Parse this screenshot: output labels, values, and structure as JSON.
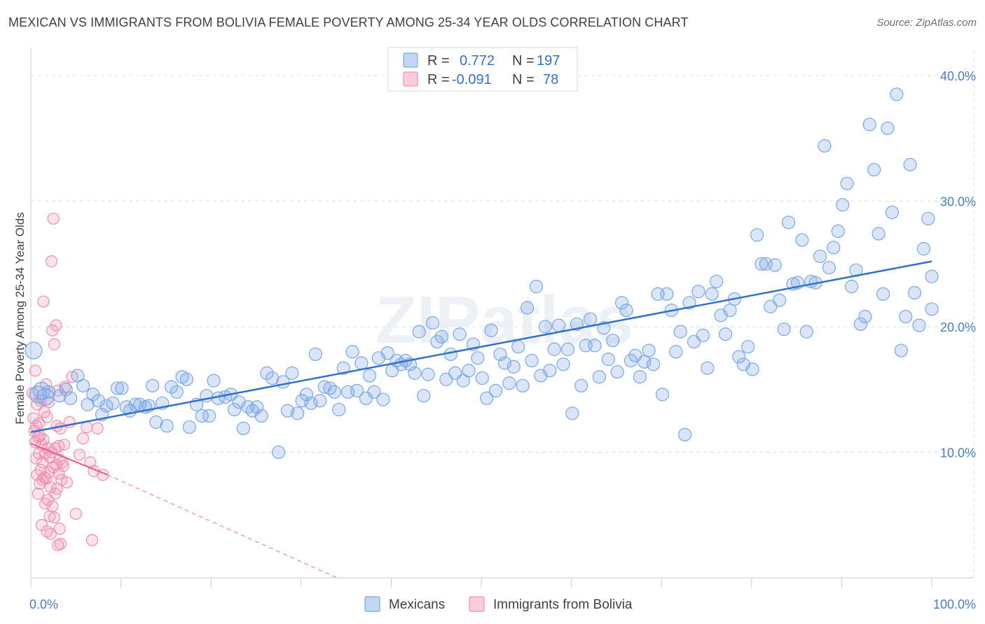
{
  "title": "MEXICAN VS IMMIGRANTS FROM BOLIVIA FEMALE POVERTY AMONG 25-34 YEAR OLDS CORRELATION CHART",
  "source": "Source: ZipAtlas.com",
  "watermark": "ZIPatlas",
  "colors": {
    "mexicans": "#7aa7e6",
    "mexicans_fill": "rgba(122,167,230,0.28)",
    "mexicans_line": "#3370cc",
    "bolivia": "#f08fb0",
    "bolivia_fill": "rgba(240,143,176,0.25)",
    "bolivia_line": "#e5628f",
    "tick_text": "#4a7cc7",
    "grid": "#d9dde3"
  },
  "legend": {
    "r_label": "R =",
    "n_label": "N =",
    "rows": [
      {
        "r": "0.772",
        "n": "197"
      },
      {
        "r": "-0.091",
        "n": "78"
      }
    ]
  },
  "chart_data": {
    "type": "scatter",
    "title": "MEXICAN VS IMMIGRANTS FROM BOLIVIA FEMALE POVERTY AMONG 25-34 YEAR OLDS CORRELATION CHART",
    "xlabel": "",
    "ylabel": "Female Poverty Among 25-34 Year Olds",
    "xlim": [
      0,
      100
    ],
    "ylim": [
      0,
      42
    ],
    "x_tick_labels": [
      "0.0%",
      "100.0%"
    ],
    "y_ticks": [
      10,
      20,
      30,
      40
    ],
    "y_tick_labels": [
      "10.0%",
      "20.0%",
      "30.0%",
      "40.0%"
    ],
    "grid": true,
    "legend_position": "top-center",
    "series": [
      {
        "name": "Mexicans",
        "r": 0.772,
        "n": 197,
        "trend": {
          "x": [
            0,
            100
          ],
          "y": [
            11.6,
            25.2
          ]
        },
        "points": [
          [
            0.3,
            18.1
          ],
          [
            0.8,
            14.6
          ],
          [
            1.2,
            14.9
          ],
          [
            1.6,
            14.4
          ],
          [
            2.0,
            14.8
          ],
          [
            3.2,
            14.5
          ],
          [
            3.9,
            15.0
          ],
          [
            4.4,
            14.3
          ],
          [
            5.2,
            16.1
          ],
          [
            5.8,
            15.3
          ],
          [
            6.3,
            13.8
          ],
          [
            6.9,
            14.6
          ],
          [
            7.5,
            14.1
          ],
          [
            7.9,
            13.0
          ],
          [
            8.4,
            13.7
          ],
          [
            9.1,
            13.9
          ],
          [
            9.6,
            15.1
          ],
          [
            10.1,
            15.1
          ],
          [
            10.6,
            13.6
          ],
          [
            11.0,
            13.3
          ],
          [
            11.6,
            13.8
          ],
          [
            12.1,
            13.8
          ],
          [
            12.7,
            13.6
          ],
          [
            13.1,
            13.7
          ],
          [
            13.5,
            15.3
          ],
          [
            13.9,
            12.4
          ],
          [
            14.6,
            13.9
          ],
          [
            15.1,
            12.1
          ],
          [
            15.6,
            15.2
          ],
          [
            16.2,
            14.8
          ],
          [
            16.8,
            16.0
          ],
          [
            17.3,
            15.8
          ],
          [
            17.6,
            12.0
          ],
          [
            18.4,
            13.8
          ],
          [
            19.0,
            12.9
          ],
          [
            19.5,
            14.5
          ],
          [
            19.8,
            12.9
          ],
          [
            20.3,
            15.7
          ],
          [
            20.8,
            14.3
          ],
          [
            21.6,
            14.4
          ],
          [
            22.2,
            14.6
          ],
          [
            22.6,
            13.4
          ],
          [
            23.1,
            14.0
          ],
          [
            23.6,
            11.9
          ],
          [
            24.1,
            13.6
          ],
          [
            24.6,
            13.3
          ],
          [
            25.1,
            13.6
          ],
          [
            25.6,
            12.9
          ],
          [
            26.2,
            16.3
          ],
          [
            26.8,
            15.9
          ],
          [
            27.5,
            10.0
          ],
          [
            28.0,
            15.6
          ],
          [
            28.5,
            13.3
          ],
          [
            29.0,
            16.3
          ],
          [
            29.6,
            13.1
          ],
          [
            30.1,
            14.1
          ],
          [
            30.6,
            14.6
          ],
          [
            31.1,
            13.9
          ],
          [
            31.6,
            17.8
          ],
          [
            32.1,
            14.1
          ],
          [
            32.6,
            15.2
          ],
          [
            33.2,
            15.1
          ],
          [
            33.7,
            14.8
          ],
          [
            34.2,
            13.4
          ],
          [
            34.7,
            16.7
          ],
          [
            35.2,
            14.8
          ],
          [
            35.7,
            18.0
          ],
          [
            36.2,
            14.9
          ],
          [
            36.7,
            17.1
          ],
          [
            37.2,
            14.3
          ],
          [
            37.6,
            16.1
          ],
          [
            38.1,
            14.8
          ],
          [
            38.6,
            17.5
          ],
          [
            39.1,
            14.2
          ],
          [
            39.6,
            17.9
          ],
          [
            40.1,
            16.5
          ],
          [
            40.6,
            17.3
          ],
          [
            41.1,
            17.0
          ],
          [
            41.6,
            17.3
          ],
          [
            42.1,
            17.0
          ],
          [
            42.6,
            16.3
          ],
          [
            43.1,
            19.6
          ],
          [
            43.6,
            14.5
          ],
          [
            44.1,
            16.2
          ],
          [
            44.6,
            20.3
          ],
          [
            45.1,
            18.8
          ],
          [
            45.6,
            19.2
          ],
          [
            46.1,
            15.8
          ],
          [
            46.6,
            17.8
          ],
          [
            47.1,
            16.3
          ],
          [
            47.6,
            19.4
          ],
          [
            48.0,
            15.7
          ],
          [
            48.6,
            16.5
          ],
          [
            49.1,
            18.6
          ],
          [
            49.6,
            17.5
          ],
          [
            50.1,
            15.9
          ],
          [
            50.6,
            14.3
          ],
          [
            51.1,
            19.7
          ],
          [
            51.6,
            14.9
          ],
          [
            52.1,
            17.8
          ],
          [
            52.6,
            17.1
          ],
          [
            53.1,
            15.5
          ],
          [
            53.6,
            16.8
          ],
          [
            54.1,
            18.4
          ],
          [
            54.6,
            15.3
          ],
          [
            55.1,
            21.5
          ],
          [
            55.6,
            17.3
          ],
          [
            56.1,
            23.2
          ],
          [
            56.6,
            16.1
          ],
          [
            57.1,
            20.0
          ],
          [
            57.6,
            16.5
          ],
          [
            58.1,
            18.2
          ],
          [
            58.6,
            20.1
          ],
          [
            59.1,
            17.0
          ],
          [
            59.6,
            18.2
          ],
          [
            60.1,
            13.1
          ],
          [
            60.6,
            20.2
          ],
          [
            61.1,
            15.3
          ],
          [
            61.6,
            18.5
          ],
          [
            62.1,
            20.6
          ],
          [
            62.6,
            18.5
          ],
          [
            63.1,
            16.0
          ],
          [
            63.6,
            19.9
          ],
          [
            64.1,
            17.4
          ],
          [
            64.6,
            18.9
          ],
          [
            65.1,
            16.4
          ],
          [
            65.6,
            21.9
          ],
          [
            66.1,
            21.3
          ],
          [
            66.6,
            17.3
          ],
          [
            67.1,
            17.7
          ],
          [
            67.6,
            16.0
          ],
          [
            68.1,
            17.2
          ],
          [
            68.6,
            18.1
          ],
          [
            69.1,
            17.0
          ],
          [
            69.6,
            22.6
          ],
          [
            70.1,
            14.6
          ],
          [
            70.6,
            22.6
          ],
          [
            71.1,
            21.3
          ],
          [
            71.6,
            18.0
          ],
          [
            72.1,
            19.6
          ],
          [
            72.6,
            11.4
          ],
          [
            73.1,
            21.9
          ],
          [
            73.6,
            18.8
          ],
          [
            74.1,
            22.8
          ],
          [
            74.6,
            19.3
          ],
          [
            75.1,
            16.7
          ],
          [
            75.6,
            22.6
          ],
          [
            76.1,
            23.6
          ],
          [
            76.6,
            20.9
          ],
          [
            77.1,
            19.4
          ],
          [
            77.6,
            21.3
          ],
          [
            78.1,
            22.2
          ],
          [
            78.6,
            17.6
          ],
          [
            79.1,
            17.0
          ],
          [
            79.6,
            18.4
          ],
          [
            80.1,
            16.6
          ],
          [
            80.6,
            27.3
          ],
          [
            81.1,
            25.0
          ],
          [
            81.6,
            25.0
          ],
          [
            82.1,
            21.6
          ],
          [
            82.6,
            24.9
          ],
          [
            83.1,
            22.1
          ],
          [
            83.6,
            19.8
          ],
          [
            84.1,
            28.3
          ],
          [
            84.6,
            23.4
          ],
          [
            85.1,
            23.5
          ],
          [
            85.6,
            26.9
          ],
          [
            86.1,
            19.6
          ],
          [
            86.6,
            23.6
          ],
          [
            87.1,
            23.5
          ],
          [
            87.6,
            25.6
          ],
          [
            88.1,
            34.4
          ],
          [
            88.6,
            24.7
          ],
          [
            89.1,
            26.3
          ],
          [
            89.6,
            27.6
          ],
          [
            90.1,
            29.7
          ],
          [
            90.6,
            31.4
          ],
          [
            91.1,
            23.2
          ],
          [
            91.6,
            24.5
          ],
          [
            92.1,
            20.2
          ],
          [
            92.6,
            20.8
          ],
          [
            93.1,
            36.1
          ],
          [
            93.6,
            32.5
          ],
          [
            94.1,
            27.4
          ],
          [
            94.6,
            22.6
          ],
          [
            95.1,
            35.8
          ],
          [
            95.6,
            29.1
          ],
          [
            96.1,
            38.5
          ],
          [
            96.6,
            18.1
          ],
          [
            97.1,
            20.8
          ],
          [
            97.6,
            32.9
          ],
          [
            98.1,
            22.7
          ],
          [
            98.6,
            20.1
          ],
          [
            99.1,
            26.2
          ],
          [
            99.6,
            28.6
          ],
          [
            100.0,
            21.4
          ],
          [
            100.0,
            24.0
          ]
        ]
      },
      {
        "name": "Immigrants from Bolivia",
        "r": -0.091,
        "n": 78,
        "trend": {
          "x": [
            0,
            8.5,
            34.0
          ],
          "y": [
            10.7,
            8.2,
            0.0
          ]
        },
        "points": [
          [
            0.2,
            14.7
          ],
          [
            0.3,
            12.7
          ],
          [
            0.4,
            11.7
          ],
          [
            0.5,
            16.5
          ],
          [
            0.5,
            10.8
          ],
          [
            0.6,
            12.1
          ],
          [
            0.6,
            9.5
          ],
          [
            0.7,
            13.8
          ],
          [
            0.7,
            8.2
          ],
          [
            0.8,
            11.2
          ],
          [
            0.8,
            6.7
          ],
          [
            0.9,
            9.9
          ],
          [
            0.9,
            12.3
          ],
          [
            1.0,
            7.5
          ],
          [
            1.0,
            11.3
          ],
          [
            1.1,
            14.1
          ],
          [
            1.1,
            8.6
          ],
          [
            1.2,
            10.6
          ],
          [
            1.2,
            4.2
          ],
          [
            1.3,
            7.8
          ],
          [
            1.3,
            9.2
          ],
          [
            1.4,
            22.0
          ],
          [
            1.4,
            11.0
          ],
          [
            1.5,
            8.0
          ],
          [
            1.5,
            13.2
          ],
          [
            1.6,
            5.9
          ],
          [
            1.6,
            9.9
          ],
          [
            1.7,
            15.4
          ],
          [
            1.7,
            7.9
          ],
          [
            1.8,
            3.7
          ],
          [
            1.8,
            12.8
          ],
          [
            1.9,
            10.3
          ],
          [
            1.9,
            6.2
          ],
          [
            2.0,
            14.0
          ],
          [
            2.0,
            8.4
          ],
          [
            2.1,
            9.6
          ],
          [
            2.1,
            4.9
          ],
          [
            2.2,
            7.2
          ],
          [
            2.2,
            3.5
          ],
          [
            2.3,
            25.2
          ],
          [
            2.3,
            10.0
          ],
          [
            2.4,
            19.7
          ],
          [
            2.4,
            5.7
          ],
          [
            2.5,
            28.6
          ],
          [
            2.5,
            8.8
          ],
          [
            2.6,
            18.6
          ],
          [
            2.6,
            4.8
          ],
          [
            2.7,
            10.3
          ],
          [
            2.7,
            6.7
          ],
          [
            2.8,
            20.1
          ],
          [
            2.8,
            9.0
          ],
          [
            2.9,
            12.1
          ],
          [
            2.9,
            7.1
          ],
          [
            3.0,
            14.9
          ],
          [
            3.0,
            2.6
          ],
          [
            3.1,
            10.5
          ],
          [
            3.1,
            8.3
          ],
          [
            3.2,
            3.9
          ],
          [
            3.2,
            9.4
          ],
          [
            3.3,
            11.9
          ],
          [
            3.3,
            2.7
          ],
          [
            3.4,
            7.8
          ],
          [
            3.5,
            9.2
          ],
          [
            3.6,
            8.9
          ],
          [
            3.7,
            10.6
          ],
          [
            3.8,
            15.2
          ],
          [
            4.0,
            7.6
          ],
          [
            4.3,
            12.4
          ],
          [
            4.6,
            16.0
          ],
          [
            5.0,
            5.1
          ],
          [
            5.4,
            9.8
          ],
          [
            5.8,
            11.1
          ],
          [
            6.2,
            12.0
          ],
          [
            6.6,
            9.2
          ],
          [
            6.8,
            3.0
          ],
          [
            7.0,
            8.5
          ],
          [
            7.4,
            11.9
          ],
          [
            8.0,
            8.2
          ]
        ]
      }
    ]
  },
  "bottom_legend": [
    {
      "label": "Mexicans"
    },
    {
      "label": "Immigrants from Bolivia"
    }
  ]
}
